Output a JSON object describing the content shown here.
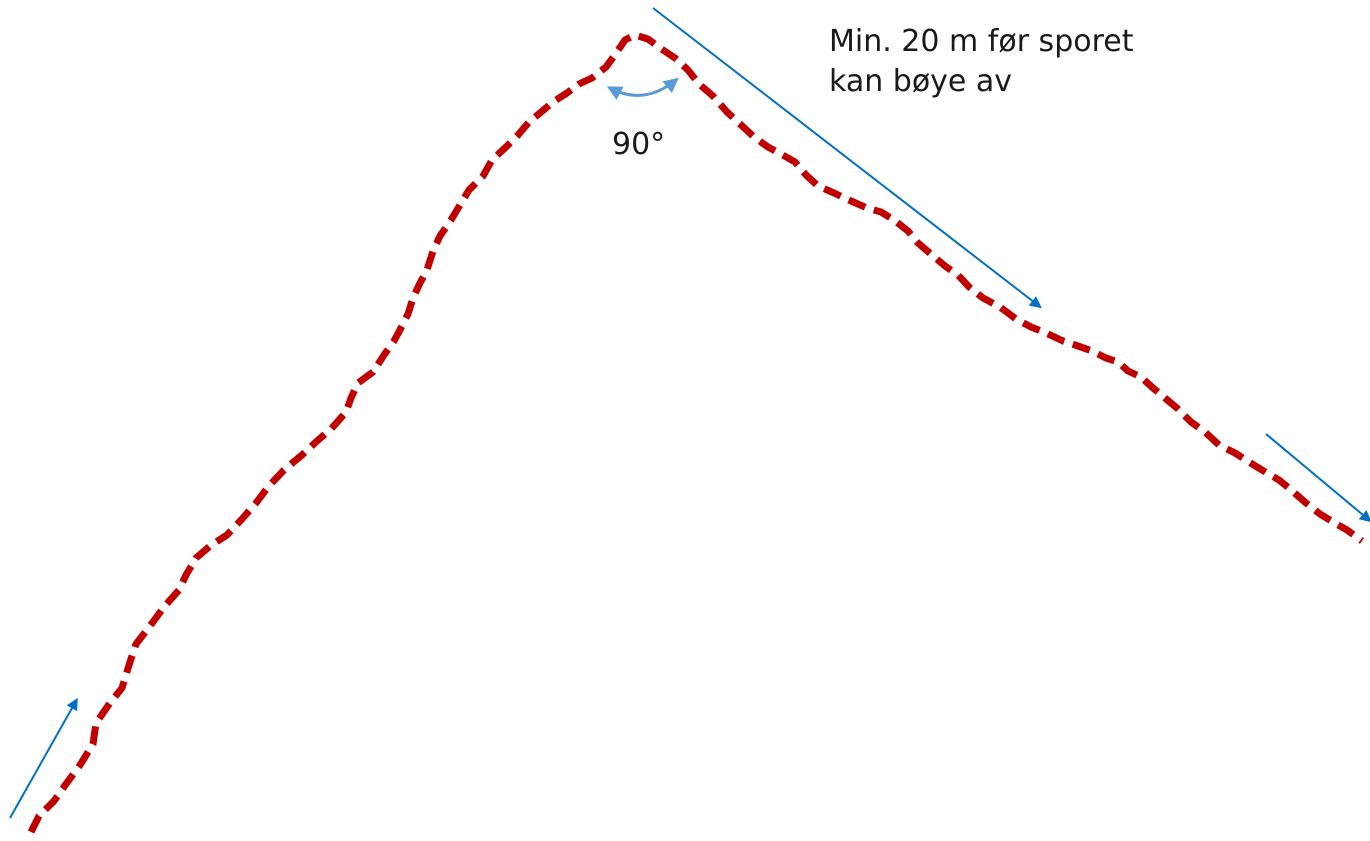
{
  "diagram": {
    "note_lines": [
      "Min. 20 m før sporet",
      "kan bøye av"
    ],
    "angle_label": "90°",
    "colors": {
      "track": "#c00000",
      "arrow": "#0070c0",
      "angle_arc": "#5b9bd5",
      "text": "#1a1a1a",
      "background": "#ffffff"
    },
    "elements": [
      "dashed-track-line",
      "direction-arrow-start",
      "direction-arrow-along-track",
      "direction-arrow-end",
      "angle-arc-arrow"
    ]
  }
}
